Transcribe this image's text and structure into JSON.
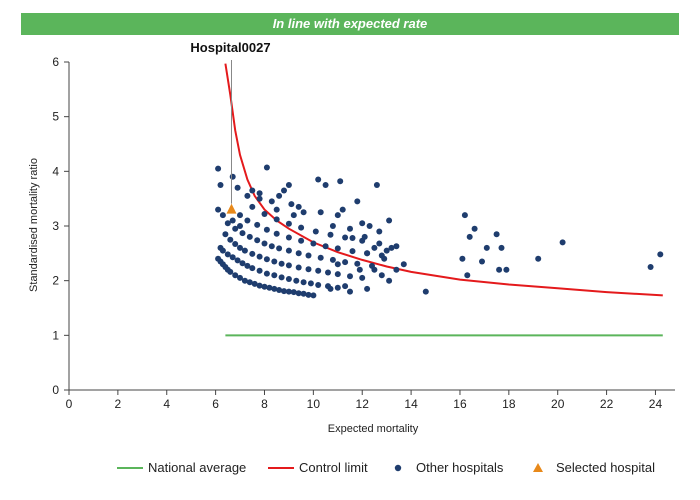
{
  "banner": {
    "text": "In line with expected rate",
    "color": "#5bb55b"
  },
  "chart_data": {
    "type": "scatter",
    "title": "",
    "xlabel": "Expected mortality",
    "ylabel": "Standardised mortality ratio",
    "xlim": [
      0,
      24.8
    ],
    "ylim": [
      0,
      6
    ],
    "xticks": [
      0,
      2,
      4,
      6,
      8,
      10,
      12,
      14,
      16,
      18,
      20,
      22,
      24
    ],
    "yticks": [
      0,
      1,
      2,
      3,
      4,
      5,
      6
    ],
    "grid": false,
    "legend_position": "bottom",
    "colors": {
      "national_average": "#5bb55b",
      "control_limit": "#e41a1c",
      "other_hospitals": "#1f3d6e",
      "selected_hospital": "#e8891a"
    },
    "national_average": {
      "name": "National average",
      "y": 1,
      "x_range": [
        6.4,
        24.3
      ]
    },
    "control_limit": {
      "name": "Control limit",
      "points": [
        [
          6.4,
          5.97
        ],
        [
          6.6,
          5.4
        ],
        [
          6.8,
          4.75
        ],
        [
          7.0,
          4.3
        ],
        [
          7.3,
          3.85
        ],
        [
          7.6,
          3.55
        ],
        [
          8.0,
          3.3
        ],
        [
          8.5,
          3.1
        ],
        [
          9.0,
          2.95
        ],
        [
          10.0,
          2.7
        ],
        [
          11.0,
          2.52
        ],
        [
          12.0,
          2.38
        ],
        [
          13.0,
          2.26
        ],
        [
          14.0,
          2.16
        ],
        [
          15.0,
          2.09
        ],
        [
          16.0,
          2.02
        ],
        [
          18.0,
          1.93
        ],
        [
          20.0,
          1.86
        ],
        [
          22.0,
          1.79
        ],
        [
          24.3,
          1.73
        ]
      ]
    },
    "other_hospitals": {
      "name": "Other hospitals",
      "points": [
        [
          6.1,
          2.4
        ],
        [
          6.2,
          2.35
        ],
        [
          6.3,
          2.3
        ],
        [
          6.4,
          2.25
        ],
        [
          6.5,
          2.2
        ],
        [
          6.6,
          2.16
        ],
        [
          6.8,
          2.1
        ],
        [
          7.0,
          2.05
        ],
        [
          7.2,
          2.0
        ],
        [
          7.4,
          1.97
        ],
        [
          7.6,
          1.94
        ],
        [
          7.8,
          1.91
        ],
        [
          8.0,
          1.89
        ],
        [
          8.2,
          1.87
        ],
        [
          8.4,
          1.85
        ],
        [
          8.6,
          1.83
        ],
        [
          8.8,
          1.81
        ],
        [
          9.0,
          1.8
        ],
        [
          9.2,
          1.79
        ],
        [
          9.4,
          1.77
        ],
        [
          9.6,
          1.76
        ],
        [
          9.8,
          1.74
        ],
        [
          10.0,
          1.73
        ],
        [
          6.2,
          2.6
        ],
        [
          6.3,
          2.55
        ],
        [
          6.5,
          2.48
        ],
        [
          6.7,
          2.43
        ],
        [
          6.9,
          2.37
        ],
        [
          7.1,
          2.32
        ],
        [
          7.3,
          2.27
        ],
        [
          7.5,
          2.23
        ],
        [
          7.8,
          2.18
        ],
        [
          8.1,
          2.13
        ],
        [
          8.4,
          2.1
        ],
        [
          8.7,
          2.06
        ],
        [
          9.0,
          2.03
        ],
        [
          9.3,
          2.0
        ],
        [
          9.6,
          1.97
        ],
        [
          9.9,
          1.95
        ],
        [
          10.2,
          1.92
        ],
        [
          10.6,
          1.9
        ],
        [
          11.0,
          1.87
        ],
        [
          6.4,
          2.85
        ],
        [
          6.6,
          2.75
        ],
        [
          6.8,
          2.67
        ],
        [
          7.0,
          2.6
        ],
        [
          7.2,
          2.55
        ],
        [
          7.5,
          2.49
        ],
        [
          7.8,
          2.44
        ],
        [
          8.1,
          2.39
        ],
        [
          8.4,
          2.35
        ],
        [
          8.7,
          2.31
        ],
        [
          9.0,
          2.28
        ],
        [
          9.4,
          2.24
        ],
        [
          9.8,
          2.21
        ],
        [
          10.2,
          2.18
        ],
        [
          10.6,
          2.15
        ],
        [
          11.0,
          2.12
        ],
        [
          11.5,
          2.08
        ],
        [
          12.0,
          2.05
        ],
        [
          6.5,
          3.05
        ],
        [
          6.8,
          2.95
        ],
        [
          7.1,
          2.87
        ],
        [
          7.4,
          2.8
        ],
        [
          7.7,
          2.74
        ],
        [
          8.0,
          2.68
        ],
        [
          8.3,
          2.63
        ],
        [
          8.6,
          2.59
        ],
        [
          9.0,
          2.55
        ],
        [
          9.4,
          2.5
        ],
        [
          9.8,
          2.46
        ],
        [
          10.3,
          2.42
        ],
        [
          10.8,
          2.38
        ],
        [
          11.3,
          2.34
        ],
        [
          11.8,
          2.31
        ],
        [
          12.4,
          2.27
        ],
        [
          7.0,
          3.2
        ],
        [
          7.3,
          3.1
        ],
        [
          7.7,
          3.02
        ],
        [
          8.1,
          2.93
        ],
        [
          8.5,
          2.86
        ],
        [
          9.0,
          2.79
        ],
        [
          9.5,
          2.73
        ],
        [
          10.0,
          2.68
        ],
        [
          10.5,
          2.63
        ],
        [
          11.0,
          2.59
        ],
        [
          11.6,
          2.54
        ],
        [
          12.2,
          2.5
        ],
        [
          12.8,
          2.46
        ],
        [
          7.5,
          3.35
        ],
        [
          8.0,
          3.22
        ],
        [
          8.5,
          3.12
        ],
        [
          9.0,
          3.04
        ],
        [
          9.5,
          2.97
        ],
        [
          10.1,
          2.9
        ],
        [
          10.7,
          2.84
        ],
        [
          11.3,
          2.79
        ],
        [
          12.0,
          2.73
        ],
        [
          12.7,
          2.68
        ],
        [
          13.4,
          2.63
        ],
        [
          6.1,
          3.3
        ],
        [
          6.3,
          3.2
        ],
        [
          6.7,
          3.1
        ],
        [
          7.0,
          3.0
        ],
        [
          6.2,
          3.75
        ],
        [
          6.9,
          3.7
        ],
        [
          7.3,
          3.55
        ],
        [
          7.8,
          3.5
        ],
        [
          6.1,
          4.05
        ],
        [
          6.7,
          3.9
        ],
        [
          7.5,
          3.65
        ],
        [
          7.8,
          3.6
        ],
        [
          8.1,
          4.07
        ],
        [
          8.3,
          3.45
        ],
        [
          8.5,
          3.3
        ],
        [
          8.6,
          3.55
        ],
        [
          8.8,
          3.65
        ],
        [
          9.0,
          3.75
        ],
        [
          9.1,
          3.4
        ],
        [
          9.2,
          3.2
        ],
        [
          9.4,
          3.35
        ],
        [
          9.6,
          3.25
        ],
        [
          10.2,
          3.85
        ],
        [
          10.5,
          3.75
        ],
        [
          11.1,
          3.82
        ],
        [
          12.6,
          3.75
        ],
        [
          10.3,
          3.25
        ],
        [
          11.2,
          3.3
        ],
        [
          11.8,
          3.45
        ],
        [
          11.0,
          3.2
        ],
        [
          10.8,
          3.0
        ],
        [
          11.5,
          2.95
        ],
        [
          12.0,
          3.05
        ],
        [
          12.3,
          3.0
        ],
        [
          13.1,
          3.1
        ],
        [
          12.7,
          2.9
        ],
        [
          11.6,
          2.78
        ],
        [
          12.1,
          2.8
        ],
        [
          12.5,
          2.6
        ],
        [
          13.0,
          2.55
        ],
        [
          13.2,
          2.6
        ],
        [
          12.9,
          2.4
        ],
        [
          12.2,
          2.5
        ],
        [
          11.0,
          2.3
        ],
        [
          11.9,
          2.2
        ],
        [
          12.5,
          2.2
        ],
        [
          12.8,
          2.1
        ],
        [
          13.4,
          2.2
        ],
        [
          13.7,
          2.3
        ],
        [
          10.7,
          1.85
        ],
        [
          11.3,
          1.9
        ],
        [
          11.5,
          1.8
        ],
        [
          12.2,
          1.85
        ],
        [
          13.1,
          2.0
        ],
        [
          14.6,
          1.8
        ],
        [
          16.1,
          2.4
        ],
        [
          16.2,
          3.2
        ],
        [
          16.4,
          2.8
        ],
        [
          16.6,
          2.95
        ],
        [
          16.3,
          2.1
        ],
        [
          16.9,
          2.35
        ],
        [
          17.1,
          2.6
        ],
        [
          17.5,
          2.85
        ],
        [
          17.6,
          2.2
        ],
        [
          17.7,
          2.6
        ],
        [
          17.9,
          2.2
        ],
        [
          19.2,
          2.4
        ],
        [
          20.2,
          2.7
        ],
        [
          23.8,
          2.25
        ],
        [
          24.2,
          2.48
        ]
      ]
    },
    "selected_hospital": {
      "name": "Selected hospital",
      "label": "Hospital0027",
      "x": 6.65,
      "y": 3.3
    }
  }
}
